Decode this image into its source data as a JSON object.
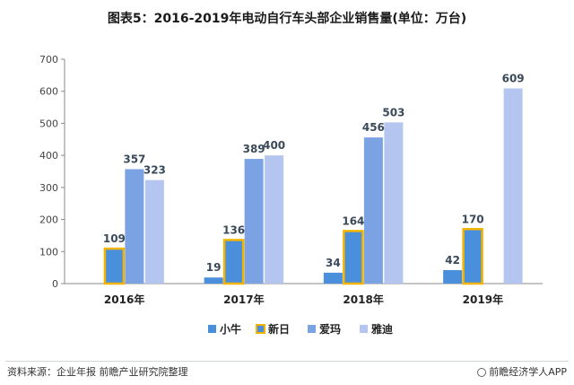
{
  "title": "图表5：2016-2019年电动自行车头部企业销售量(单位：万台)",
  "footer": {
    "source": "资料来源：企业年报 前瞻产业研究院整理",
    "brand": "前瞻经济学人APP"
  },
  "chart_data": {
    "type": "bar",
    "title": "图表5：2016-2019年电动自行车头部企业销售量(单位：万台)",
    "categories": [
      "2016年",
      "2017年",
      "2018年",
      "2019年"
    ],
    "ylim": [
      0,
      700
    ],
    "yticks": [
      0,
      100,
      200,
      300,
      400,
      500,
      600,
      700
    ],
    "grid": false,
    "legend_position": "bottom",
    "series": [
      {
        "name": "小牛",
        "values": [
          null,
          19,
          34,
          42
        ],
        "color": "#4a8fdc"
      },
      {
        "name": "新日",
        "values": [
          109,
          136,
          164,
          170
        ],
        "color": "#4a8fdc",
        "border": "#f2b400"
      },
      {
        "name": "爱玛",
        "values": [
          357,
          389,
          456,
          null
        ],
        "color": "#7ba2e3"
      },
      {
        "name": "雅迪",
        "values": [
          323,
          400,
          503,
          609
        ],
        "color": "#b4c6ef"
      }
    ],
    "label_color": "#3a4a5a"
  }
}
